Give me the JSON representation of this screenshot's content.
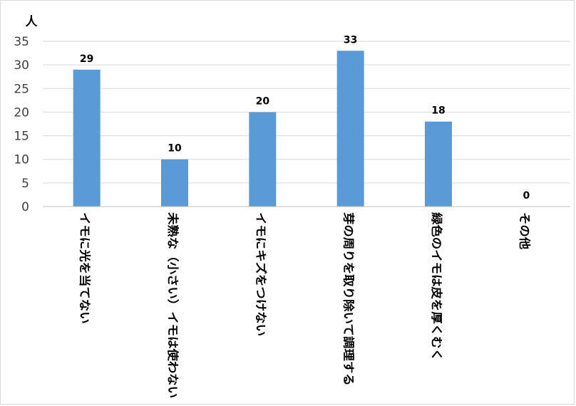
{
  "chart_data": {
    "type": "bar",
    "categories": [
      "イモに光を当てない",
      "未熟な（小さい）イモは使わない",
      "イモにキズをつけない",
      "芽の周りを取り除いて調理する",
      "緑色のイモは皮を厚くむく",
      "その他"
    ],
    "values": [
      29,
      10,
      20,
      33,
      18,
      0
    ],
    "ylabel": "人",
    "ylim": [
      0,
      35
    ],
    "yticks": [
      0,
      5,
      10,
      15,
      20,
      25,
      30,
      35
    ],
    "grid": true,
    "legend": "none",
    "bar_color": "#5b9bd5",
    "grid_color": "#d9d9d9",
    "axis_color": "#bfbfbf"
  }
}
